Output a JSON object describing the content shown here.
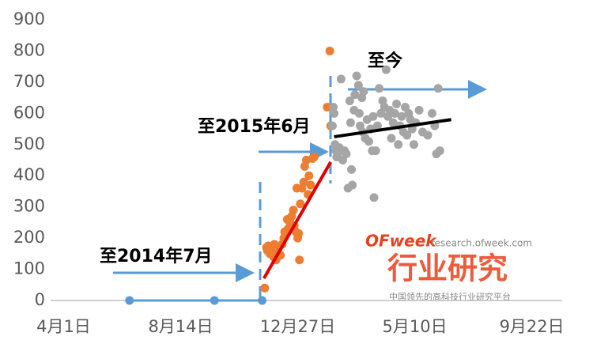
{
  "chart_data": {
    "type": "scatter",
    "xlim": [
      -15,
      575
    ],
    "ylim": [
      0,
      900
    ],
    "yticks": [
      0,
      100,
      200,
      300,
      400,
      500,
      600,
      700,
      800,
      900
    ],
    "xticks": [
      {
        "value": 0,
        "label": "4月1日"
      },
      {
        "value": 135,
        "label": "8月14日"
      },
      {
        "value": 270,
        "label": "12月27日"
      },
      {
        "value": 405,
        "label": "5月10日"
      },
      {
        "value": 540,
        "label": "9月22日"
      }
    ],
    "series": [
      {
        "color": "#5b9bd5",
        "line": true,
        "markers": true,
        "x": [
          76,
          174,
          229
        ],
        "values": [
          0,
          0,
          0
        ]
      },
      {
        "color": "#ed7d31",
        "line": false,
        "markers": true,
        "x": [
          232,
          234,
          235,
          236,
          238,
          240,
          242,
          243,
          245,
          246,
          248,
          250,
          252,
          254,
          255,
          258,
          259,
          261,
          263,
          265,
          266,
          268,
          269,
          270,
          271,
          272,
          273,
          275,
          277,
          278,
          280,
          282,
          283,
          285,
          287,
          289,
          304,
          307,
          308
        ],
        "values": [
          40,
          170,
          160,
          175,
          150,
          165,
          140,
          180,
          130,
          160,
          170,
          145,
          180,
          200,
          220,
          260,
          230,
          250,
          270,
          290,
          240,
          220,
          360,
          200,
          215,
          130,
          310,
          360,
          380,
          430,
          450,
          340,
          400,
          370,
          455,
          460,
          620,
          800,
          560
        ]
      },
      {
        "color": "#a5a5a5",
        "line": false,
        "markers": true,
        "x": [
          310,
          311,
          312,
          313,
          314,
          315,
          316,
          318,
          320,
          322,
          324,
          326,
          328,
          330,
          331,
          332,
          333,
          335,
          336,
          338,
          340,
          341,
          342,
          344,
          345,
          346,
          348,
          350,
          352,
          354,
          356,
          357,
          358,
          360,
          362,
          364,
          366,
          368,
          370,
          372,
          374,
          376,
          378,
          380,
          382,
          384,
          386,
          388,
          390,
          392,
          394,
          396,
          398,
          400,
          402,
          404,
          406,
          410,
          414,
          420,
          425,
          428,
          430,
          432,
          434
        ],
        "values": [
          560,
          620,
          600,
          500,
          480,
          460,
          470,
          490,
          710,
          450,
          480,
          470,
          360,
          640,
          570,
          420,
          370,
          610,
          660,
          720,
          690,
          600,
          560,
          650,
          540,
          670,
          520,
          580,
          510,
          550,
          480,
          590,
          330,
          480,
          560,
          680,
          600,
          640,
          620,
          740,
          590,
          610,
          520,
          570,
          600,
          630,
          500,
          560,
          590,
          540,
          620,
          530,
          600,
          580,
          550,
          500,
          570,
          610,
          540,
          530,
          600,
          560,
          470,
          680,
          480
        ]
      },
      {
        "color": "#e00000",
        "line": true,
        "markers": false,
        "x": [
          231,
          308
        ],
        "values": [
          71,
          444
        ]
      },
      {
        "color": "#000000",
        "line": true,
        "markers": false,
        "x": [
          312,
          447
        ],
        "values": [
          525,
          580
        ]
      }
    ],
    "annotations": [
      "至2014年7月",
      "至2015年6月",
      "至今"
    ],
    "watermark": {
      "brand": "OFweek",
      "site": "research.ofweek.com",
      "title": "行业研究",
      "slogan": "中国领先的高科技行业研究平台"
    }
  }
}
